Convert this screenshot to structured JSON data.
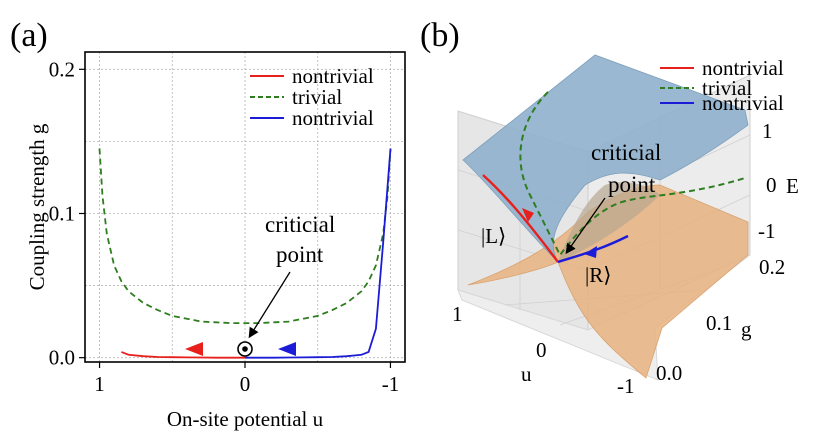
{
  "panels": {
    "a_label": "(a)",
    "b_label": "(b)"
  },
  "colors": {
    "nontrivial_red": "#e8201c",
    "trivial_green": "#2e7d1f",
    "nontrivial_blue": "#1c1cd8",
    "upper_surface": "#8fb0cc",
    "lower_surface": "#e8b280"
  },
  "chart_data": [
    {
      "type": "line",
      "panel": "(a)",
      "xlabel": "On-site potential u",
      "ylabel": "Coupling strength g",
      "xlim": [
        1.0,
        -1.0
      ],
      "ylim": [
        0,
        0.2
      ],
      "x_ticks": [
        1,
        0,
        -1
      ],
      "x_tick_labels": [
        "1",
        "0",
        "-1"
      ],
      "y_ticks": [
        0.0,
        0.1,
        0.2
      ],
      "y_tick_labels": [
        "0.0",
        "0.1",
        "0.2"
      ],
      "grid": true,
      "legend": "top-right",
      "series": [
        {
          "name": "nontrivial",
          "color": "#e8201c",
          "style": "solid",
          "x": [
            0.85,
            0.8,
            0.7,
            0.6,
            0.5,
            0.4,
            0.3,
            0.2,
            0.1,
            0.0
          ],
          "y": [
            0.004,
            0.002,
            0.001,
            0.0005,
            0.0003,
            0.0002,
            0.0001,
            0.0,
            0.0,
            0.0
          ]
        },
        {
          "name": "trivial",
          "color": "#2e7d1f",
          "style": "dashed",
          "x": [
            1.0,
            0.98,
            0.95,
            0.9,
            0.85,
            0.8,
            0.7,
            0.6,
            0.5,
            0.4,
            0.3,
            0.2,
            0.1,
            0.0,
            -0.1,
            -0.2,
            -0.3,
            -0.4,
            -0.5,
            -0.6,
            -0.7,
            -0.8,
            -0.85,
            -0.9,
            -0.95,
            -0.98,
            -1.0
          ],
          "y": [
            0.145,
            0.112,
            0.086,
            0.064,
            0.053,
            0.046,
            0.038,
            0.033,
            0.029,
            0.027,
            0.025,
            0.0245,
            0.024,
            0.024,
            0.024,
            0.0245,
            0.025,
            0.027,
            0.029,
            0.033,
            0.038,
            0.046,
            0.053,
            0.064,
            0.086,
            0.112,
            0.145
          ]
        },
        {
          "name": "nontrivial",
          "color": "#1c1cd8",
          "style": "solid",
          "x": [
            0.0,
            -0.1,
            -0.2,
            -0.3,
            -0.4,
            -0.5,
            -0.6,
            -0.7,
            -0.75,
            -0.8,
            -0.85,
            -0.9,
            -0.95,
            -1.0
          ],
          "y": [
            0.0,
            0.0,
            0.0,
            0.0001,
            0.0002,
            0.0003,
            0.0005,
            0.001,
            0.0015,
            0.002,
            0.004,
            0.02,
            0.08,
            0.145
          ]
        }
      ],
      "annotations": [
        {
          "text": "criticial point",
          "x": 0.0,
          "y": 0.0
        }
      ]
    },
    {
      "type": "surface3d",
      "panel": "(b)",
      "xlabel": "u",
      "ylabel": "g",
      "zlabel": "E",
      "x_tick_labels": [
        "1",
        "0",
        "-1"
      ],
      "y_tick_labels": [
        "0.0",
        "0.1",
        "0.2"
      ],
      "z_tick_labels": [
        "1",
        "0",
        "-1"
      ],
      "legend": "top-right",
      "series": [
        {
          "name": "nontrivial",
          "color": "#e8201c"
        },
        {
          "name": "trivial",
          "color": "#2e7d1f"
        },
        {
          "name": "nontrivial",
          "color": "#1c1cd8"
        }
      ],
      "annotations": [
        {
          "text": "criticial point"
        },
        {
          "text": "|L⟩"
        },
        {
          "text": "|R⟩"
        }
      ]
    }
  ]
}
